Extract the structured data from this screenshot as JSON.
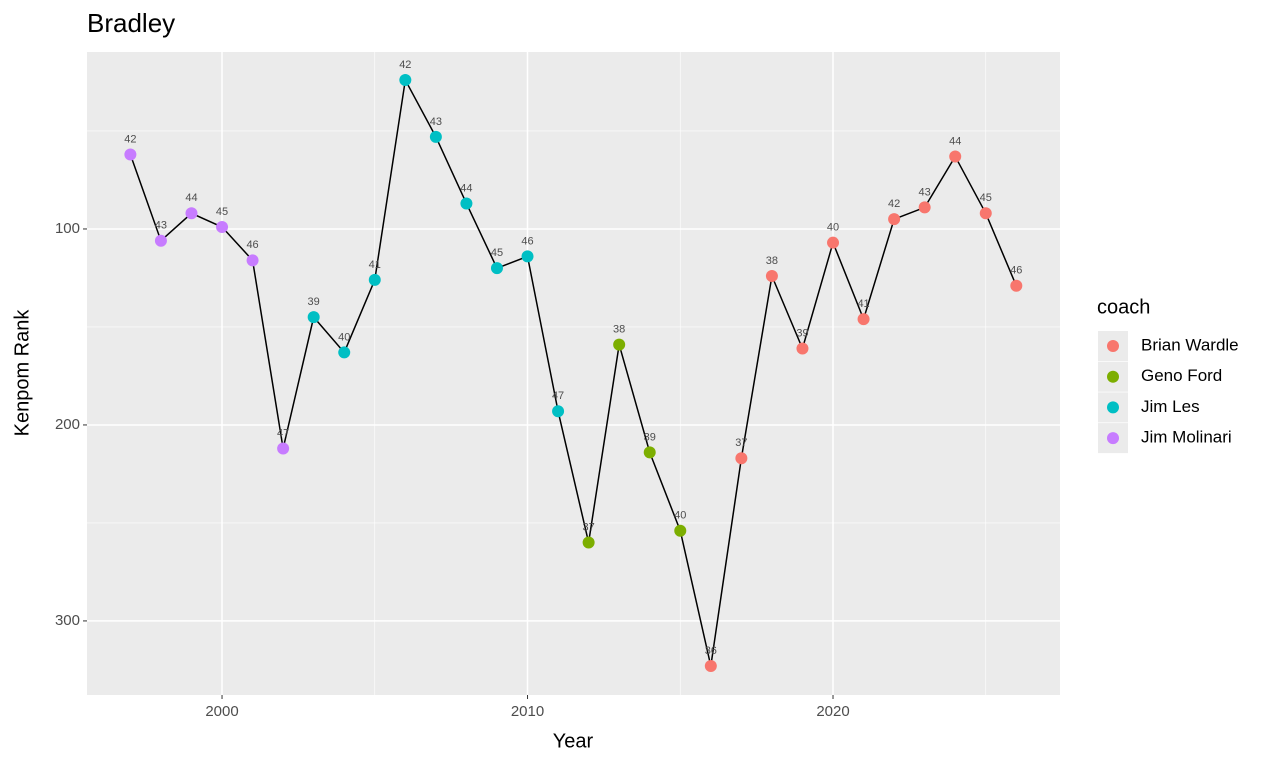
{
  "chart_data": {
    "type": "line",
    "title": "Bradley",
    "x_label": "Year",
    "y_label": "Kenpom Rank",
    "x": [
      1997,
      1998,
      1999,
      2000,
      2001,
      2002,
      2003,
      2004,
      2005,
      2006,
      2007,
      2008,
      2009,
      2010,
      2011,
      2012,
      2013,
      2014,
      2015,
      2016,
      2017,
      2018,
      2019,
      2020,
      2021,
      2022,
      2023,
      2024,
      2025,
      2026
    ],
    "values": [
      62,
      106,
      92,
      99,
      116,
      212,
      145,
      163,
      126,
      24,
      53,
      87,
      120,
      114,
      193,
      260,
      159,
      214,
      254,
      323,
      217,
      124,
      161,
      107,
      146,
      95,
      89,
      63,
      92,
      129
    ],
    "point_labels": [
      42,
      43,
      44,
      45,
      46,
      47,
      39,
      40,
      41,
      42,
      43,
      44,
      45,
      46,
      47,
      37,
      38,
      39,
      40,
      36,
      37,
      38,
      39,
      40,
      41,
      42,
      43,
      44,
      45,
      46
    ],
    "coaches": [
      "Jim Molinari",
      "Jim Molinari",
      "Jim Molinari",
      "Jim Molinari",
      "Jim Molinari",
      "Jim Molinari",
      "Jim Les",
      "Jim Les",
      "Jim Les",
      "Jim Les",
      "Jim Les",
      "Jim Les",
      "Jim Les",
      "Jim Les",
      "Jim Les",
      "Geno Ford",
      "Geno Ford",
      "Geno Ford",
      "Geno Ford",
      "Brian Wardle",
      "Brian Wardle",
      "Brian Wardle",
      "Brian Wardle",
      "Brian Wardle",
      "Brian Wardle",
      "Brian Wardle",
      "Brian Wardle",
      "Brian Wardle",
      "Brian Wardle",
      "Brian Wardle"
    ],
    "line_color": "#000000",
    "legend": {
      "title": "coach",
      "entries": [
        {
          "name": "Brian Wardle",
          "color": "#f8766d"
        },
        {
          "name": "Geno Ford",
          "color": "#7cae00"
        },
        {
          "name": "Jim Les",
          "color": "#00bfc4"
        },
        {
          "name": "Jim Molinari",
          "color": "#c77cff"
        }
      ]
    },
    "xlim": [
      1995.58,
      2027.43
    ],
    "xticks": [
      2000,
      2010,
      2020
    ],
    "xminor": [
      2005,
      2015,
      2025
    ],
    "ylim": [
      9.7,
      337.8
    ],
    "y_reversed": true,
    "yticks": [
      100,
      200,
      300
    ],
    "yminor": [
      50,
      150,
      250
    ],
    "grid": true
  }
}
